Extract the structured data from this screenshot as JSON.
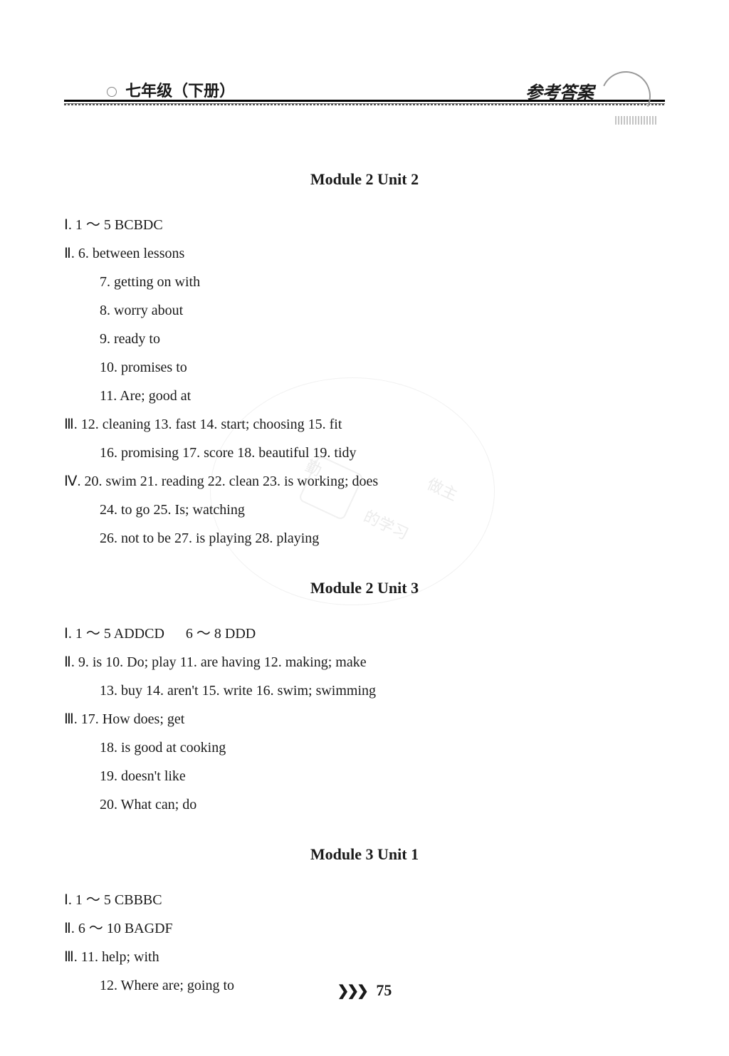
{
  "header": {
    "left": "七年级（下册）",
    "right": "参考答案"
  },
  "sections": [
    {
      "title": "Module 2   Unit 2",
      "lines": [
        {
          "t": "Ⅰ. 1 ～ 5 BCBDC",
          "i": 0
        },
        {
          "t": "Ⅱ. 6. between lessons",
          "i": 0
        },
        {
          "t": "7. getting on with",
          "i": 1
        },
        {
          "t": "8. worry about",
          "i": 1
        },
        {
          "t": "9. ready to",
          "i": 1
        },
        {
          "t": "10. promises to",
          "i": 1
        },
        {
          "t": "11. Are; good at",
          "i": 1
        },
        {
          "t": "Ⅲ. 12. cleaning 13. fast 14. start; choosing 15. fit",
          "i": 0
        },
        {
          "t": "16. promising 17. score 18. beautiful 19. tidy",
          "i": 1
        },
        {
          "t": "Ⅳ. 20. swim 21. reading 22. clean 23. is working; does",
          "i": 0
        },
        {
          "t": "24. to go 25. Is; watching",
          "i": 1
        },
        {
          "t": "26. not to be 27. is playing 28. playing",
          "i": 1
        }
      ]
    },
    {
      "title": "Module 2   Unit 3",
      "lines": [
        {
          "t": "Ⅰ. 1 ～ 5 ADDCD      6 ～ 8 DDD",
          "i": 0
        },
        {
          "t": "Ⅱ. 9. is 10. Do; play 11. are having 12. making; make",
          "i": 0
        },
        {
          "t": "13. buy 14. aren't 15. write 16. swim; swimming",
          "i": 1
        },
        {
          "t": "Ⅲ. 17. How does; get",
          "i": 0
        },
        {
          "t": "18. is good at cooking",
          "i": 1
        },
        {
          "t": "19. doesn't like",
          "i": 1
        },
        {
          "t": "20. What can; do",
          "i": 1
        }
      ]
    },
    {
      "title": "Module 3   Unit 1",
      "lines": [
        {
          "t": "Ⅰ. 1 ～ 5 CBBBC",
          "i": 0
        },
        {
          "t": "Ⅱ. 6 ～ 10 BAGDF",
          "i": 0
        },
        {
          "t": "Ⅲ. 11. help; with",
          "i": 0
        },
        {
          "t": "12. Where are; going to",
          "i": 1
        }
      ]
    }
  ],
  "footer": {
    "icon": "❯❯❯",
    "page": "75"
  }
}
